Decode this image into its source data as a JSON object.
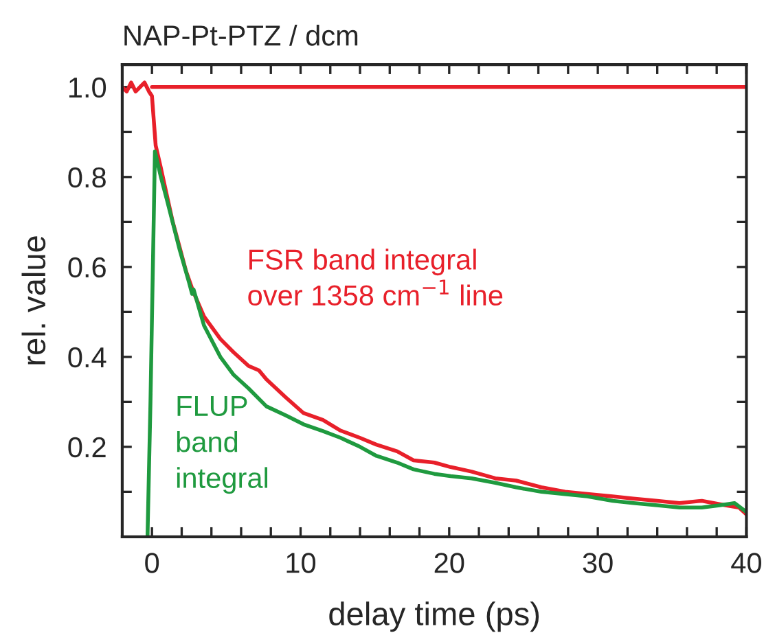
{
  "chart_data": {
    "type": "line",
    "title": "NAP-Pt-PTZ / dcm",
    "xlabel": "delay time (ps)",
    "ylabel": "rel. value",
    "xlim": [
      -2,
      40
    ],
    "ylim": [
      0,
      1.05
    ],
    "xticks": [
      {
        "value": -2,
        "label": null
      },
      0,
      {
        "value": 2,
        "label": null
      },
      {
        "value": 4,
        "label": null
      },
      {
        "value": 6,
        "label": null
      },
      {
        "value": 8,
        "label": null
      },
      10,
      {
        "value": 12,
        "label": null
      },
      {
        "value": 14,
        "label": null
      },
      {
        "value": 16,
        "label": null
      },
      {
        "value": 18,
        "label": null
      },
      20,
      {
        "value": 22,
        "label": null
      },
      {
        "value": 24,
        "label": null
      },
      {
        "value": 26,
        "label": null
      },
      {
        "value": 28,
        "label": null
      },
      30,
      {
        "value": 32,
        "label": null
      },
      {
        "value": 34,
        "label": null
      },
      {
        "value": 36,
        "label": null
      },
      {
        "value": 38,
        "label": null
      },
      40
    ],
    "yticks": [
      {
        "value": 0.1,
        "label": null
      },
      0.2,
      {
        "value": 0.3,
        "label": null
      },
      0.4,
      {
        "value": 0.5,
        "label": null
      },
      0.6,
      {
        "value": 0.7,
        "label": null
      },
      0.8,
      {
        "value": 0.9,
        "label": null
      },
      {
        "value": 1.0,
        "label": "1.0"
      }
    ],
    "series": [
      {
        "name": "FSR band integral\nover 1358 cm$^{−1}$ line",
        "color": "#e8202a",
        "x": [
          -2,
          -1.7,
          -1.4,
          -1.1,
          -0.8,
          -0.5,
          -0.2,
          0,
          0.25,
          0.6,
          0.93,
          1.4,
          1.85,
          2.3,
          2.78,
          3.5,
          4.6,
          5.5,
          6.5,
          7.2,
          7.7,
          9,
          10.2,
          11.5,
          12.7,
          14,
          15.1,
          16.5,
          17.6,
          19,
          20.1,
          21.5,
          23.1,
          24.5,
          26.2,
          27.8,
          29.3,
          31,
          32.4,
          34,
          35.5,
          37,
          38.6,
          39.5,
          40
        ],
        "values": [
          1.0,
          0.99,
          1.01,
          0.99,
          1.0,
          1.01,
          0.99,
          0.98,
          0.87,
          0.82,
          0.77,
          0.7,
          0.645,
          0.59,
          0.545,
          0.49,
          0.44,
          0.41,
          0.38,
          0.37,
          0.35,
          0.31,
          0.275,
          0.26,
          0.236,
          0.22,
          0.205,
          0.19,
          0.17,
          0.165,
          0.155,
          0.145,
          0.13,
          0.125,
          0.11,
          0.1,
          0.095,
          0.09,
          0.085,
          0.08,
          0.075,
          0.08,
          0.07,
          0.065,
          0.05
        ]
      },
      {
        "name": "FLUP\nband\nintegral",
        "color": "#1f9a3f",
        "x": [
          -0.3,
          -0.1,
          0.2,
          0.6,
          1.0,
          1.85,
          2.5,
          2.7,
          2.8,
          3.5,
          4.6,
          5.5,
          6.5,
          7.7,
          9,
          10.2,
          11.5,
          12.7,
          14,
          15.1,
          16.5,
          17.6,
          19,
          20.1,
          21.5,
          23.1,
          24.5,
          26.2,
          27.8,
          29.3,
          31,
          32.4,
          34,
          35.5,
          37,
          38.2,
          39.2,
          40
        ],
        "values": [
          0.0,
          0.3,
          0.857,
          0.8,
          0.75,
          0.64,
          0.565,
          0.54,
          0.55,
          0.47,
          0.4,
          0.36,
          0.33,
          0.29,
          0.27,
          0.25,
          0.235,
          0.22,
          0.2,
          0.18,
          0.165,
          0.15,
          0.14,
          0.135,
          0.13,
          0.12,
          0.11,
          0.1,
          0.095,
          0.09,
          0.08,
          0.075,
          0.07,
          0.065,
          0.065,
          0.07,
          0.075,
          0.055
        ]
      }
    ],
    "ref_lines": [
      {
        "axis": "y",
        "value": 1.0,
        "color": "#e8202a"
      }
    ],
    "grid": false,
    "legend": false,
    "marker": "none",
    "line_style": "solid"
  }
}
